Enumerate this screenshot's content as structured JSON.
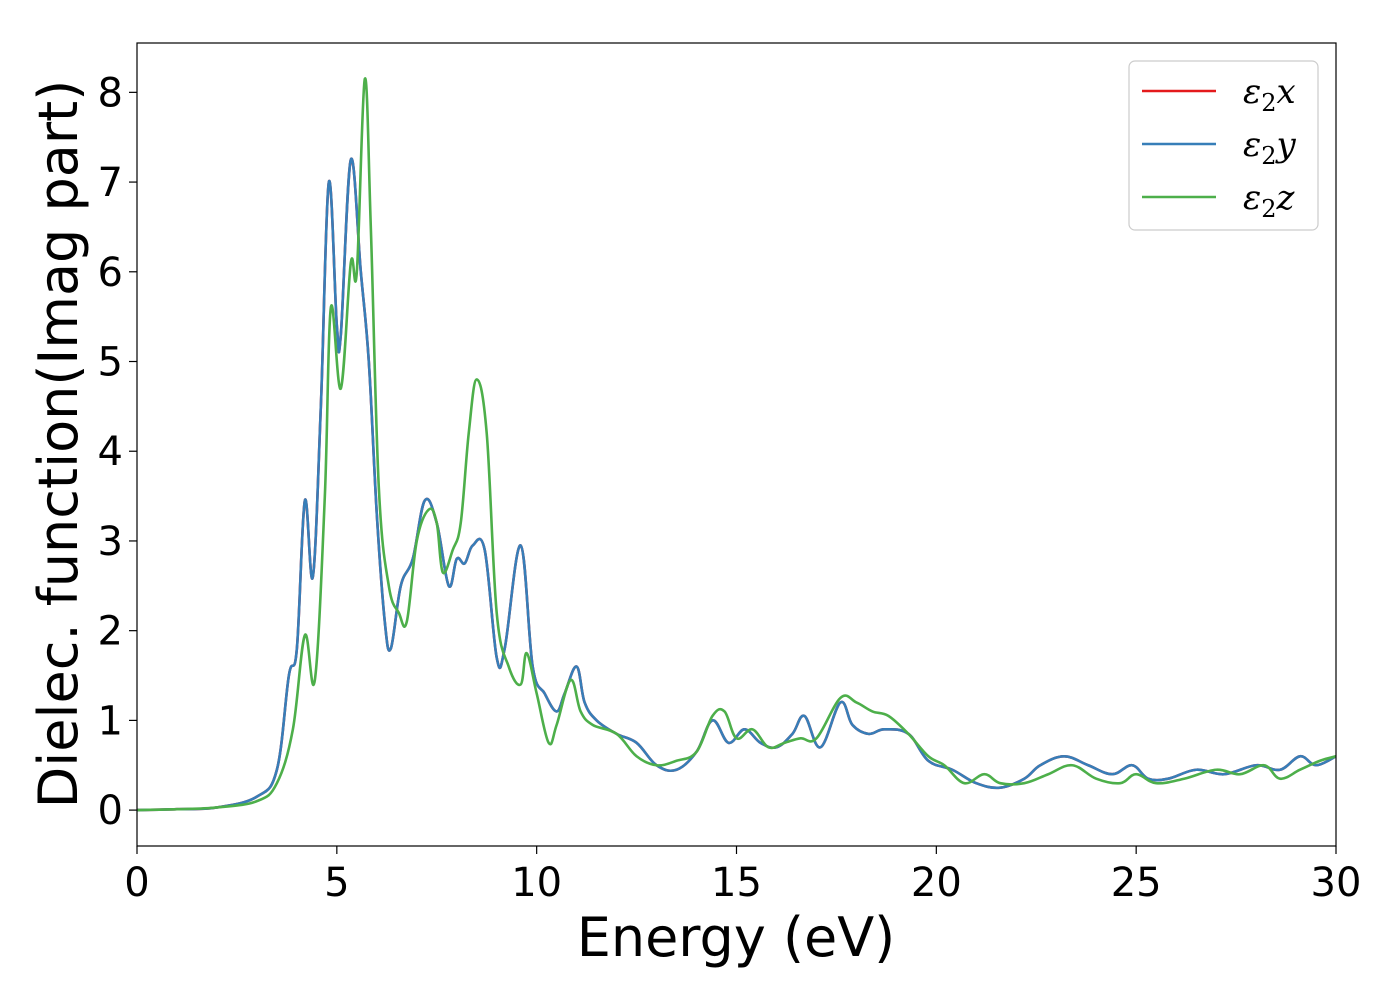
{
  "chart_data": {
    "type": "line",
    "xlabel": "Energy (eV)",
    "ylabel": "Dielec. function(Imag part)",
    "xlim": [
      0,
      30
    ],
    "ylim": [
      -0.4,
      8.55
    ],
    "xticks": [
      "0",
      "5",
      "10",
      "15",
      "20",
      "25",
      "30"
    ],
    "xtick_values": [
      0,
      5,
      10,
      15,
      20,
      25,
      30
    ],
    "yticks": [
      "0",
      "1",
      "2",
      "3",
      "4",
      "5",
      "6",
      "7",
      "8"
    ],
    "ytick_values": [
      0,
      1,
      2,
      3,
      4,
      5,
      6,
      7,
      8
    ],
    "grid": false,
    "legend_position": "top-right",
    "legend": [
      {
        "base": "ε",
        "sub": "2",
        "comp": "x",
        "color": "#e41a1c"
      },
      {
        "base": "ε",
        "sub": "2",
        "comp": "y",
        "color": "#377eb8"
      },
      {
        "base": "ε",
        "sub": "2",
        "comp": "z",
        "color": "#4daf4a"
      }
    ],
    "series": [
      {
        "name": "ε2x",
        "color": "#e41a1c",
        "points": [
          [
            0,
            0
          ],
          [
            1,
            0.01
          ],
          [
            2,
            0.03
          ],
          [
            3,
            0.15
          ],
          [
            3.5,
            0.45
          ],
          [
            3.8,
            1.5
          ],
          [
            4.0,
            1.8
          ],
          [
            4.2,
            3.45
          ],
          [
            4.4,
            2.6
          ],
          [
            4.6,
            4.5
          ],
          [
            4.8,
            7.0
          ],
          [
            5.0,
            5.4
          ],
          [
            5.1,
            5.3
          ],
          [
            5.35,
            7.25
          ],
          [
            5.6,
            6.0
          ],
          [
            5.8,
            5.0
          ],
          [
            6.0,
            3.3
          ],
          [
            6.2,
            2.1
          ],
          [
            6.35,
            1.8
          ],
          [
            6.6,
            2.5
          ],
          [
            6.9,
            2.8
          ],
          [
            7.2,
            3.45
          ],
          [
            7.5,
            3.2
          ],
          [
            7.8,
            2.5
          ],
          [
            8.0,
            2.8
          ],
          [
            8.2,
            2.75
          ],
          [
            8.4,
            2.95
          ],
          [
            8.7,
            2.9
          ],
          [
            9.0,
            1.7
          ],
          [
            9.2,
            1.8
          ],
          [
            9.6,
            2.95
          ],
          [
            9.9,
            1.6
          ],
          [
            10.2,
            1.3
          ],
          [
            10.5,
            1.1
          ],
          [
            10.7,
            1.3
          ],
          [
            11.0,
            1.6
          ],
          [
            11.2,
            1.2
          ],
          [
            11.5,
            1.0
          ],
          [
            12.0,
            0.85
          ],
          [
            12.5,
            0.75
          ],
          [
            13.0,
            0.5
          ],
          [
            13.5,
            0.45
          ],
          [
            14.0,
            0.65
          ],
          [
            14.4,
            1.0
          ],
          [
            14.8,
            0.75
          ],
          [
            15.2,
            0.9
          ],
          [
            15.6,
            0.75
          ],
          [
            16.0,
            0.7
          ],
          [
            16.4,
            0.85
          ],
          [
            16.7,
            1.05
          ],
          [
            17.1,
            0.7
          ],
          [
            17.6,
            1.2
          ],
          [
            17.9,
            0.95
          ],
          [
            18.3,
            0.85
          ],
          [
            18.7,
            0.9
          ],
          [
            19.3,
            0.85
          ],
          [
            19.8,
            0.55
          ],
          [
            20.4,
            0.45
          ],
          [
            21.0,
            0.3
          ],
          [
            21.6,
            0.25
          ],
          [
            22.2,
            0.35
          ],
          [
            22.6,
            0.5
          ],
          [
            23.2,
            0.6
          ],
          [
            23.8,
            0.5
          ],
          [
            24.4,
            0.4
          ],
          [
            24.9,
            0.5
          ],
          [
            25.3,
            0.35
          ],
          [
            25.8,
            0.35
          ],
          [
            26.5,
            0.45
          ],
          [
            27.2,
            0.4
          ],
          [
            28.0,
            0.5
          ],
          [
            28.6,
            0.45
          ],
          [
            29.1,
            0.6
          ],
          [
            29.5,
            0.5
          ],
          [
            30,
            0.6
          ]
        ]
      },
      {
        "name": "ε2y",
        "color": "#377eb8",
        "points": [
          [
            0,
            0
          ],
          [
            1,
            0.01
          ],
          [
            2,
            0.03
          ],
          [
            3,
            0.15
          ],
          [
            3.5,
            0.45
          ],
          [
            3.8,
            1.5
          ],
          [
            4.0,
            1.8
          ],
          [
            4.2,
            3.45
          ],
          [
            4.4,
            2.6
          ],
          [
            4.6,
            4.5
          ],
          [
            4.8,
            7.0
          ],
          [
            5.0,
            5.4
          ],
          [
            5.1,
            5.3
          ],
          [
            5.35,
            7.25
          ],
          [
            5.6,
            6.0
          ],
          [
            5.8,
            5.0
          ],
          [
            6.0,
            3.3
          ],
          [
            6.2,
            2.1
          ],
          [
            6.35,
            1.8
          ],
          [
            6.6,
            2.5
          ],
          [
            6.9,
            2.8
          ],
          [
            7.2,
            3.45
          ],
          [
            7.5,
            3.2
          ],
          [
            7.8,
            2.5
          ],
          [
            8.0,
            2.8
          ],
          [
            8.2,
            2.75
          ],
          [
            8.4,
            2.95
          ],
          [
            8.7,
            2.9
          ],
          [
            9.0,
            1.7
          ],
          [
            9.2,
            1.8
          ],
          [
            9.6,
            2.95
          ],
          [
            9.9,
            1.6
          ],
          [
            10.2,
            1.3
          ],
          [
            10.5,
            1.1
          ],
          [
            10.7,
            1.3
          ],
          [
            11.0,
            1.6
          ],
          [
            11.2,
            1.2
          ],
          [
            11.5,
            1.0
          ],
          [
            12.0,
            0.85
          ],
          [
            12.5,
            0.75
          ],
          [
            13.0,
            0.5
          ],
          [
            13.5,
            0.45
          ],
          [
            14.0,
            0.65
          ],
          [
            14.4,
            1.0
          ],
          [
            14.8,
            0.75
          ],
          [
            15.2,
            0.9
          ],
          [
            15.6,
            0.75
          ],
          [
            16.0,
            0.7
          ],
          [
            16.4,
            0.85
          ],
          [
            16.7,
            1.05
          ],
          [
            17.1,
            0.7
          ],
          [
            17.6,
            1.2
          ],
          [
            17.9,
            0.95
          ],
          [
            18.3,
            0.85
          ],
          [
            18.7,
            0.9
          ],
          [
            19.3,
            0.85
          ],
          [
            19.8,
            0.55
          ],
          [
            20.4,
            0.45
          ],
          [
            21.0,
            0.3
          ],
          [
            21.6,
            0.25
          ],
          [
            22.2,
            0.35
          ],
          [
            22.6,
            0.5
          ],
          [
            23.2,
            0.6
          ],
          [
            23.8,
            0.5
          ],
          [
            24.4,
            0.4
          ],
          [
            24.9,
            0.5
          ],
          [
            25.3,
            0.35
          ],
          [
            25.8,
            0.35
          ],
          [
            26.5,
            0.45
          ],
          [
            27.2,
            0.4
          ],
          [
            28.0,
            0.5
          ],
          [
            28.6,
            0.45
          ],
          [
            29.1,
            0.6
          ],
          [
            29.5,
            0.5
          ],
          [
            30,
            0.6
          ]
        ]
      },
      {
        "name": "ε2z",
        "color": "#4daf4a",
        "points": [
          [
            0,
            0
          ],
          [
            1,
            0.01
          ],
          [
            2,
            0.03
          ],
          [
            3,
            0.1
          ],
          [
            3.5,
            0.3
          ],
          [
            3.9,
            0.9
          ],
          [
            4.2,
            1.95
          ],
          [
            4.45,
            1.45
          ],
          [
            4.7,
            3.5
          ],
          [
            4.85,
            5.6
          ],
          [
            5.1,
            4.7
          ],
          [
            5.35,
            6.1
          ],
          [
            5.5,
            6.0
          ],
          [
            5.7,
            8.15
          ],
          [
            5.85,
            6.5
          ],
          [
            6.05,
            3.6
          ],
          [
            6.3,
            2.5
          ],
          [
            6.55,
            2.2
          ],
          [
            6.75,
            2.1
          ],
          [
            7.0,
            3.0
          ],
          [
            7.3,
            3.35
          ],
          [
            7.5,
            3.2
          ],
          [
            7.65,
            2.65
          ],
          [
            7.9,
            2.9
          ],
          [
            8.1,
            3.2
          ],
          [
            8.3,
            4.2
          ],
          [
            8.5,
            4.8
          ],
          [
            8.75,
            4.2
          ],
          [
            9.0,
            2.2
          ],
          [
            9.3,
            1.6
          ],
          [
            9.6,
            1.4
          ],
          [
            9.75,
            1.75
          ],
          [
            10.0,
            1.3
          ],
          [
            10.3,
            0.75
          ],
          [
            10.5,
            0.95
          ],
          [
            10.85,
            1.45
          ],
          [
            11.1,
            1.1
          ],
          [
            11.4,
            0.95
          ],
          [
            12.0,
            0.85
          ],
          [
            12.5,
            0.6
          ],
          [
            13.0,
            0.5
          ],
          [
            13.5,
            0.55
          ],
          [
            14.0,
            0.65
          ],
          [
            14.4,
            1.05
          ],
          [
            14.7,
            1.1
          ],
          [
            15.0,
            0.8
          ],
          [
            15.4,
            0.9
          ],
          [
            15.8,
            0.7
          ],
          [
            16.2,
            0.75
          ],
          [
            16.6,
            0.8
          ],
          [
            17.0,
            0.8
          ],
          [
            17.6,
            1.25
          ],
          [
            18.0,
            1.2
          ],
          [
            18.4,
            1.1
          ],
          [
            18.8,
            1.05
          ],
          [
            19.3,
            0.85
          ],
          [
            19.8,
            0.6
          ],
          [
            20.2,
            0.5
          ],
          [
            20.7,
            0.3
          ],
          [
            21.2,
            0.4
          ],
          [
            21.6,
            0.3
          ],
          [
            22.2,
            0.3
          ],
          [
            22.8,
            0.4
          ],
          [
            23.4,
            0.5
          ],
          [
            24.0,
            0.35
          ],
          [
            24.6,
            0.3
          ],
          [
            25.0,
            0.4
          ],
          [
            25.5,
            0.3
          ],
          [
            26.2,
            0.35
          ],
          [
            27.0,
            0.45
          ],
          [
            27.6,
            0.4
          ],
          [
            28.2,
            0.5
          ],
          [
            28.6,
            0.35
          ],
          [
            29.1,
            0.45
          ],
          [
            29.6,
            0.55
          ],
          [
            30,
            0.6
          ]
        ]
      }
    ]
  }
}
